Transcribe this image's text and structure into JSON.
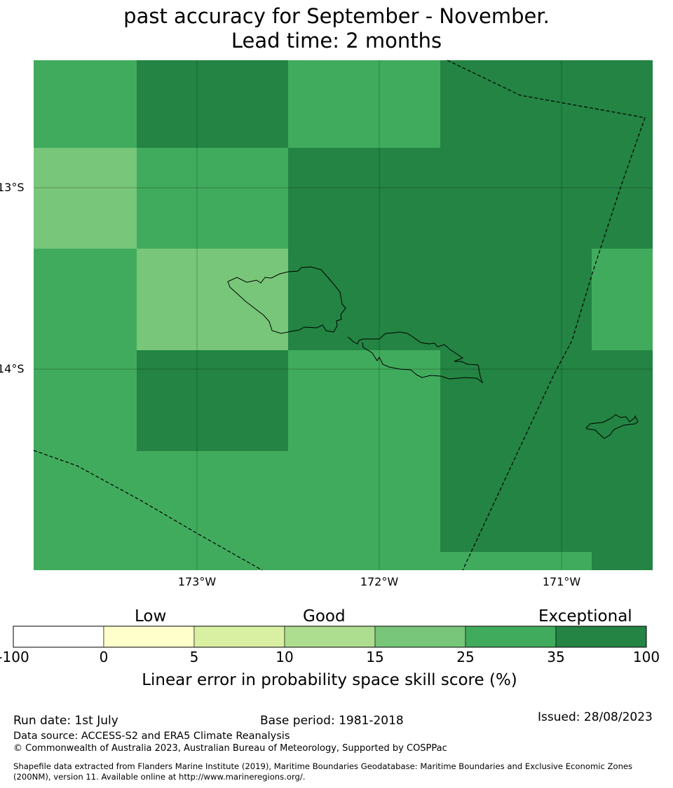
{
  "title": {
    "line1": "past accuracy for September - November.",
    "line2": "Lead time: 2 months"
  },
  "map": {
    "lat_labels": [
      "13°S",
      "14°S"
    ],
    "lon_labels": [
      "173°W",
      "172°W",
      "171°W"
    ],
    "colorscale": {
      "0-5": "#ffffcc",
      "5-10": "#d9f0a3",
      "10-15": "#addd8e",
      "15-25": "#78c679",
      "25-35": "#41ab5d",
      "35-100": "#238443"
    },
    "features": [
      "skill-score-grid",
      "coastlines",
      "maritime-boundaries"
    ]
  },
  "legend": {
    "categories": [
      "Low",
      "Good",
      "Exceptional"
    ],
    "bins": [
      {
        "from": -100,
        "to": 0,
        "color": "#ffffff"
      },
      {
        "from": 0,
        "to": 5,
        "color": "#ffffcc"
      },
      {
        "from": 5,
        "to": 10,
        "color": "#d9f0a3"
      },
      {
        "from": 10,
        "to": 15,
        "color": "#addd8e"
      },
      {
        "from": 15,
        "to": 25,
        "color": "#78c679"
      },
      {
        "from": 25,
        "to": 35,
        "color": "#41ab5d"
      },
      {
        "from": 35,
        "to": 100,
        "color": "#238443"
      }
    ],
    "tick_labels": [
      "-100",
      "0",
      "5",
      "10",
      "15",
      "25",
      "35",
      "100"
    ],
    "title": "Linear error in probability space skill score (%)"
  },
  "footer": {
    "run_date": "Run date: 1st July",
    "base_period": "Base period: 1981-2018",
    "issued": "Issued: 28/08/2023",
    "data_source": "Data source: ACCESS-S2 and ERA5 Climate Reanalysis",
    "copyright": "© Commonwealth of Australia 2023, Australian Bureau of Meteorology, Supported by COSPPac",
    "shapefile_line1": "Shapefile data extracted from Flanders Marine Institute (2019), Maritime Boundaries Geodatabase: Maritime Boundaries and Exclusive Economic Zones",
    "shapefile_line2": "(200NM), version 11. Available online at http://www.marineregions.org/."
  }
}
